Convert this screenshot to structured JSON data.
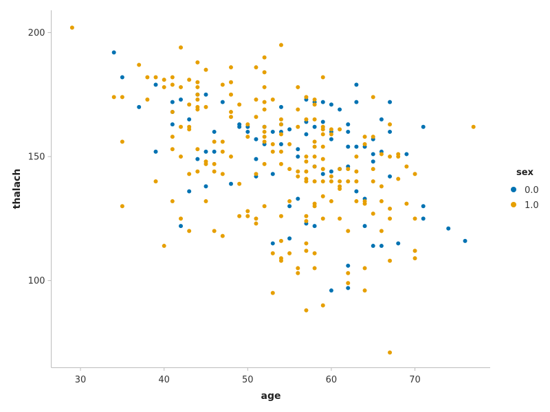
{
  "chart_data": {
    "type": "scatter",
    "title": "",
    "xlabel": "age",
    "ylabel": "thalach",
    "xlim": [
      26.5,
      79
    ],
    "ylim": [
      65,
      209
    ],
    "xticks": [
      "30",
      "40",
      "50",
      "60",
      "70"
    ],
    "yticks": [
      "100",
      "150",
      "200"
    ],
    "grid": false,
    "legend": {
      "title": "sex",
      "position": "right",
      "entries": [
        "0.0",
        "1.0"
      ]
    },
    "series": [
      {
        "name": "0.0",
        "color": "#0072b2",
        "points": [
          [
            34,
            192
          ],
          [
            35,
            182
          ],
          [
            37,
            170
          ],
          [
            39,
            179
          ],
          [
            39,
            152
          ],
          [
            41,
            172
          ],
          [
            41,
            163
          ],
          [
            41,
            168
          ],
          [
            42,
            173
          ],
          [
            42,
            122
          ],
          [
            43,
            165
          ],
          [
            43,
            136
          ],
          [
            44,
            175
          ],
          [
            44,
            149
          ],
          [
            45,
            175
          ],
          [
            45,
            152
          ],
          [
            45,
            138
          ],
          [
            46,
            160
          ],
          [
            46,
            152
          ],
          [
            47,
            172
          ],
          [
            48,
            139
          ],
          [
            49,
            163
          ],
          [
            49,
            162
          ],
          [
            50,
            162
          ],
          [
            50,
            160
          ],
          [
            51,
            157
          ],
          [
            51,
            142
          ],
          [
            51,
            149
          ],
          [
            52,
            162
          ],
          [
            52,
            155
          ],
          [
            53,
            160
          ],
          [
            53,
            143
          ],
          [
            53,
            115
          ],
          [
            54,
            170
          ],
          [
            54,
            163
          ],
          [
            54,
            160
          ],
          [
            54,
            155
          ],
          [
            55,
            161
          ],
          [
            55,
            130
          ],
          [
            55,
            117
          ],
          [
            56,
            153
          ],
          [
            56,
            150
          ],
          [
            56,
            133
          ],
          [
            57,
            173
          ],
          [
            57,
            164
          ],
          [
            57,
            159
          ],
          [
            57,
            123
          ],
          [
            58,
            172
          ],
          [
            58,
            162
          ],
          [
            58,
            146
          ],
          [
            58,
            122
          ],
          [
            59,
            172
          ],
          [
            59,
            164
          ],
          [
            59,
            143
          ],
          [
            60,
            171
          ],
          [
            60,
            160
          ],
          [
            60,
            157
          ],
          [
            60,
            144
          ],
          [
            60,
            96
          ],
          [
            61,
            169
          ],
          [
            61,
            145
          ],
          [
            62,
            163
          ],
          [
            62,
            160
          ],
          [
            62,
            154
          ],
          [
            62,
            146
          ],
          [
            62,
            106
          ],
          [
            62,
            97
          ],
          [
            63,
            179
          ],
          [
            63,
            172
          ],
          [
            63,
            154
          ],
          [
            63,
            136
          ],
          [
            64,
            154
          ],
          [
            64,
            133
          ],
          [
            64,
            122
          ],
          [
            65,
            157
          ],
          [
            65,
            151
          ],
          [
            65,
            148
          ],
          [
            65,
            114
          ],
          [
            66,
            165
          ],
          [
            66,
            152
          ],
          [
            66,
            114
          ],
          [
            67,
            172
          ],
          [
            67,
            160
          ],
          [
            67,
            142
          ],
          [
            68,
            115
          ],
          [
            69,
            151
          ],
          [
            71,
            162
          ],
          [
            71,
            130
          ],
          [
            71,
            125
          ],
          [
            74,
            121
          ],
          [
            76,
            116
          ]
        ]
      },
      {
        "name": "1.0",
        "color": "#e69f00",
        "points": [
          [
            29,
            202
          ],
          [
            34,
            174
          ],
          [
            35,
            174
          ],
          [
            35,
            156
          ],
          [
            35,
            130
          ],
          [
            37,
            187
          ],
          [
            38,
            182
          ],
          [
            38,
            173
          ],
          [
            39,
            182
          ],
          [
            39,
            140
          ],
          [
            40,
            181
          ],
          [
            40,
            178
          ],
          [
            40,
            114
          ],
          [
            41,
            182
          ],
          [
            41,
            179
          ],
          [
            41,
            168
          ],
          [
            41,
            158
          ],
          [
            41,
            153
          ],
          [
            41,
            132
          ],
          [
            42,
            194
          ],
          [
            42,
            178
          ],
          [
            42,
            162
          ],
          [
            42,
            150
          ],
          [
            42,
            125
          ],
          [
            43,
            181
          ],
          [
            43,
            171
          ],
          [
            43,
            162
          ],
          [
            43,
            161
          ],
          [
            43,
            143
          ],
          [
            43,
            120
          ],
          [
            44,
            188
          ],
          [
            44,
            180
          ],
          [
            44,
            178
          ],
          [
            44,
            175
          ],
          [
            44,
            173
          ],
          [
            44,
            170
          ],
          [
            44,
            169
          ],
          [
            44,
            153
          ],
          [
            44,
            144
          ],
          [
            45,
            185
          ],
          [
            45,
            170
          ],
          [
            45,
            148
          ],
          [
            45,
            147
          ],
          [
            45,
            132
          ],
          [
            46,
            156
          ],
          [
            46,
            147
          ],
          [
            46,
            144
          ],
          [
            46,
            120
          ],
          [
            47,
            179
          ],
          [
            47,
            156
          ],
          [
            47,
            152
          ],
          [
            47,
            143
          ],
          [
            47,
            118
          ],
          [
            48,
            186
          ],
          [
            48,
            180
          ],
          [
            48,
            175
          ],
          [
            48,
            168
          ],
          [
            48,
            166
          ],
          [
            48,
            150
          ],
          [
            49,
            171
          ],
          [
            49,
            139
          ],
          [
            49,
            126
          ],
          [
            50,
            163
          ],
          [
            50,
            158
          ],
          [
            50,
            128
          ],
          [
            50,
            126
          ],
          [
            51,
            186
          ],
          [
            51,
            173
          ],
          [
            51,
            166
          ],
          [
            51,
            143
          ],
          [
            51,
            125
          ],
          [
            51,
            123
          ],
          [
            52,
            190
          ],
          [
            52,
            184
          ],
          [
            52,
            178
          ],
          [
            52,
            172
          ],
          [
            52,
            169
          ],
          [
            52,
            162
          ],
          [
            52,
            160
          ],
          [
            52,
            158
          ],
          [
            52,
            156
          ],
          [
            52,
            147
          ],
          [
            52,
            130
          ],
          [
            53,
            173
          ],
          [
            53,
            155
          ],
          [
            53,
            152
          ],
          [
            53,
            111
          ],
          [
            53,
            95
          ],
          [
            54,
            195
          ],
          [
            54,
            165
          ],
          [
            54,
            163
          ],
          [
            54,
            159
          ],
          [
            54,
            152
          ],
          [
            54,
            147
          ],
          [
            54,
            126
          ],
          [
            54,
            116
          ],
          [
            54,
            109
          ],
          [
            54,
            108
          ],
          [
            55,
            155
          ],
          [
            55,
            145
          ],
          [
            55,
            132
          ],
          [
            55,
            111
          ],
          [
            56,
            178
          ],
          [
            56,
            169
          ],
          [
            56,
            162
          ],
          [
            56,
            144
          ],
          [
            56,
            142
          ],
          [
            56,
            105
          ],
          [
            56,
            103
          ],
          [
            57,
            174
          ],
          [
            57,
            165
          ],
          [
            57,
            150
          ],
          [
            57,
            148
          ],
          [
            57,
            144
          ],
          [
            57,
            141
          ],
          [
            57,
            140
          ],
          [
            57,
            126
          ],
          [
            57,
            124
          ],
          [
            57,
            115
          ],
          [
            57,
            112
          ],
          [
            57,
            88
          ],
          [
            58,
            173
          ],
          [
            58,
            171
          ],
          [
            58,
            165
          ],
          [
            58,
            156
          ],
          [
            58,
            154
          ],
          [
            58,
            150
          ],
          [
            58,
            146
          ],
          [
            58,
            140
          ],
          [
            58,
            131
          ],
          [
            58,
            130
          ],
          [
            58,
            111
          ],
          [
            58,
            105
          ],
          [
            59,
            182
          ],
          [
            59,
            162
          ],
          [
            59,
            161
          ],
          [
            59,
            159
          ],
          [
            59,
            154
          ],
          [
            59,
            149
          ],
          [
            59,
            145
          ],
          [
            59,
            140
          ],
          [
            59,
            134
          ],
          [
            59,
            125
          ],
          [
            59,
            90
          ],
          [
            60,
            161
          ],
          [
            60,
            159
          ],
          [
            60,
            142
          ],
          [
            60,
            140
          ],
          [
            60,
            132
          ],
          [
            61,
            161
          ],
          [
            61,
            145
          ],
          [
            61,
            140
          ],
          [
            61,
            138
          ],
          [
            61,
            137
          ],
          [
            61,
            125
          ],
          [
            62,
            145
          ],
          [
            62,
            140
          ],
          [
            62,
            120
          ],
          [
            62,
            103
          ],
          [
            62,
            99
          ],
          [
            63,
            150
          ],
          [
            63,
            144
          ],
          [
            63,
            140
          ],
          [
            63,
            132
          ],
          [
            64,
            158
          ],
          [
            64,
            155
          ],
          [
            64,
            132
          ],
          [
            64,
            131
          ],
          [
            64,
            105
          ],
          [
            64,
            96
          ],
          [
            65,
            174
          ],
          [
            65,
            158
          ],
          [
            65,
            145
          ],
          [
            65,
            140
          ],
          [
            65,
            127
          ],
          [
            66,
            151
          ],
          [
            66,
            138
          ],
          [
            66,
            132
          ],
          [
            66,
            120
          ],
          [
            67,
            163
          ],
          [
            67,
            150
          ],
          [
            67,
            129
          ],
          [
            67,
            125
          ],
          [
            67,
            108
          ],
          [
            67,
            71
          ],
          [
            68,
            151
          ],
          [
            68,
            150
          ],
          [
            68,
            141
          ],
          [
            69,
            146
          ],
          [
            69,
            131
          ],
          [
            70,
            143
          ],
          [
            70,
            125
          ],
          [
            70,
            112
          ],
          [
            70,
            109
          ],
          [
            77,
            162
          ]
        ]
      }
    ]
  }
}
